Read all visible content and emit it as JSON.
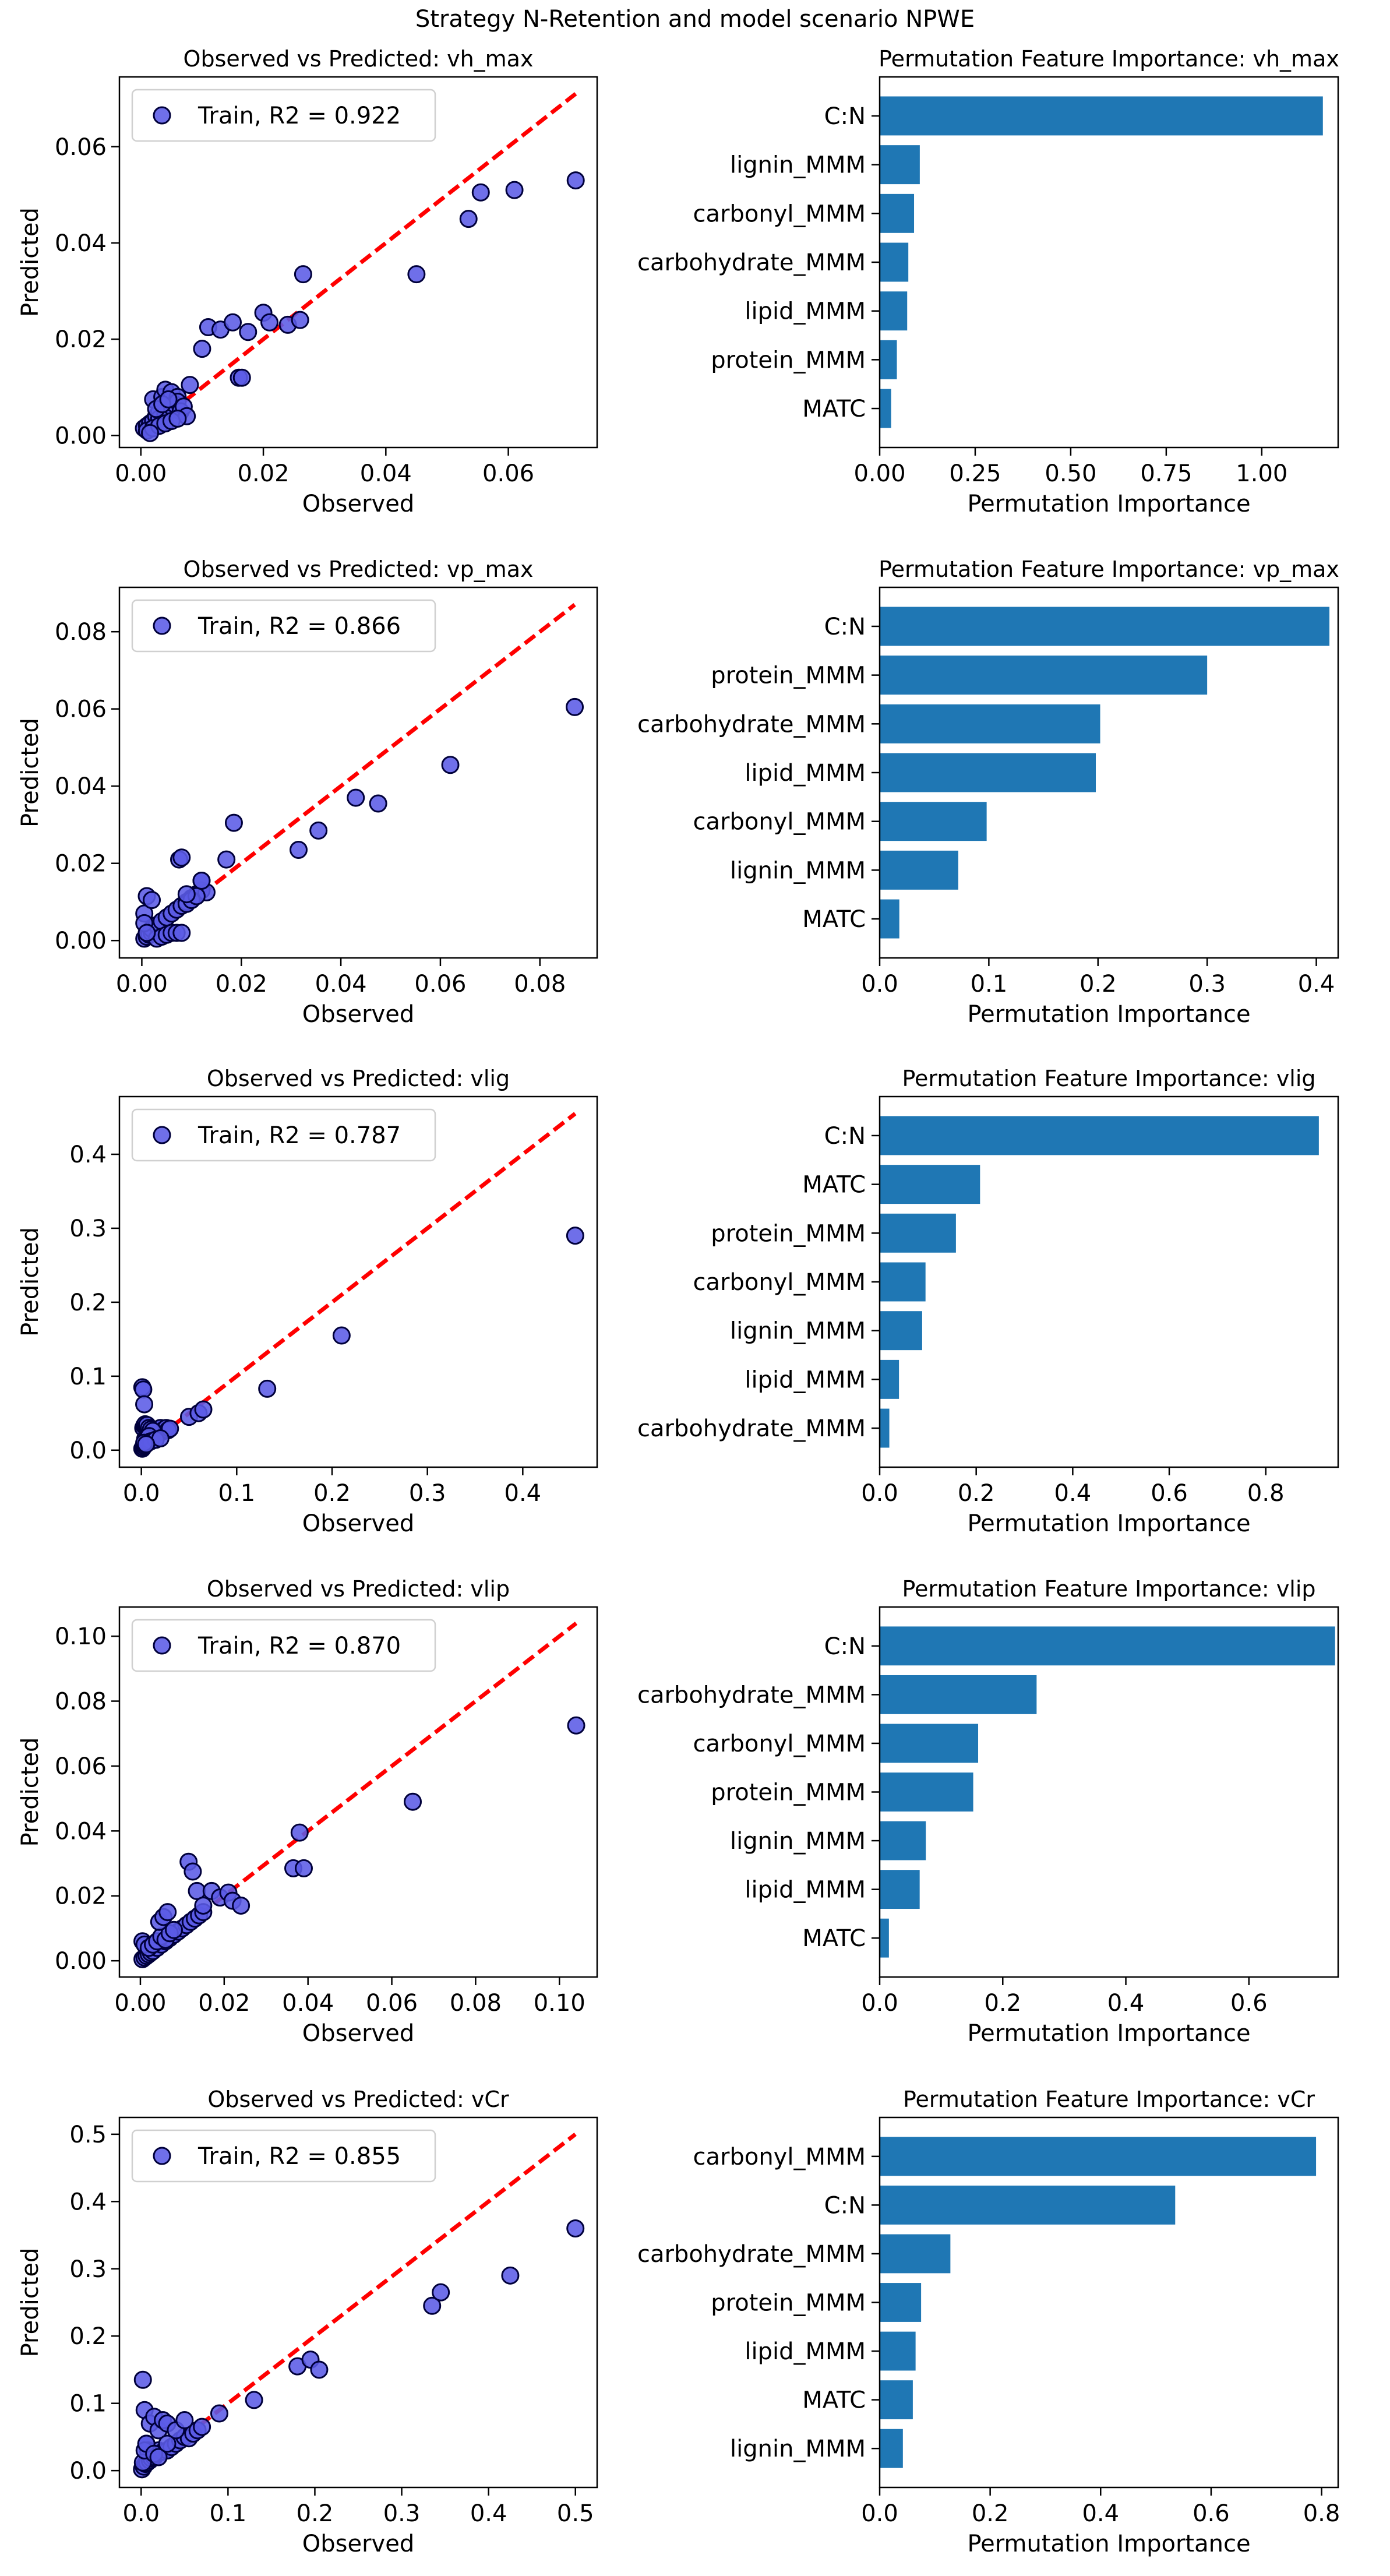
{
  "figure_title": "Strategy N-Retention and model scenario NPWE",
  "colors": {
    "scatter_fill": "#5b5be6",
    "scatter_edge": "#00003a",
    "identity_line": "#ff0000",
    "bar": "#1f77b4"
  },
  "chart_data": [
    {
      "type": "scatter",
      "title": "Observed vs Predicted: vh_max",
      "xlabel": "Observed",
      "ylabel": "Predicted",
      "xlim": [
        -0.0035,
        0.0745
      ],
      "ylim": [
        -0.0025,
        0.0745
      ],
      "xticks": [
        0.0,
        0.02,
        0.04,
        0.06
      ],
      "xtick_labels": [
        "0.00",
        "0.02",
        "0.04",
        "0.06"
      ],
      "yticks": [
        0.0,
        0.02,
        0.04,
        0.06
      ],
      "ytick_labels": [
        "0.00",
        "0.02",
        "0.04",
        "0.06"
      ],
      "legend": "Train, R2 = 0.922",
      "legend_loc": "upper-left",
      "identity_line": [
        0.0,
        0.071
      ],
      "x": [
        0.0005,
        0.001,
        0.0015,
        0.002,
        0.0025,
        0.003,
        0.001,
        0.002,
        0.0035,
        0.004,
        0.005,
        0.006,
        0.003,
        0.004,
        0.0045,
        0.005,
        0.0055,
        0.006,
        0.0065,
        0.007,
        0.0075,
        0.002,
        0.003,
        0.004,
        0.005,
        0.006,
        0.0015,
        0.0025,
        0.0035,
        0.0045,
        0.008,
        0.01,
        0.011,
        0.013,
        0.015,
        0.016,
        0.0165,
        0.0175,
        0.02,
        0.021,
        0.024,
        0.026,
        0.0265,
        0.045,
        0.0535,
        0.0555,
        0.061,
        0.071
      ],
      "y": [
        0.0015,
        0.002,
        0.0025,
        0.003,
        0.004,
        0.005,
        0.001,
        0.0075,
        0.008,
        0.0095,
        0.009,
        0.008,
        0.0035,
        0.0045,
        0.005,
        0.006,
        0.0065,
        0.007,
        0.005,
        0.006,
        0.004,
        0.0015,
        0.002,
        0.0025,
        0.003,
        0.0035,
        0.0005,
        0.0055,
        0.0065,
        0.0075,
        0.0105,
        0.018,
        0.0225,
        0.022,
        0.0235,
        0.012,
        0.012,
        0.0215,
        0.0255,
        0.0235,
        0.023,
        0.024,
        0.0335,
        0.0335,
        0.045,
        0.0505,
        0.051,
        0.053
      ]
    },
    {
      "type": "bar",
      "orientation": "horizontal",
      "title": "Permutation Feature Importance: vh_max",
      "xlabel": "Permutation Importance",
      "xlim": [
        0.0,
        1.2
      ],
      "xticks": [
        0.0,
        0.25,
        0.5,
        0.75,
        1.0
      ],
      "xtick_labels": [
        "0.00",
        "0.25",
        "0.50",
        "0.75",
        "1.00"
      ],
      "categories": [
        "C:N",
        "lignin_MMM",
        "carbonyl_MMM",
        "carbohydrate_MMM",
        "lipid_MMM",
        "protein_MMM",
        "MATC"
      ],
      "values": [
        1.16,
        0.105,
        0.09,
        0.075,
        0.072,
        0.045,
        0.03
      ]
    },
    {
      "type": "scatter",
      "title": "Observed vs Predicted: vp_max",
      "xlabel": "Observed",
      "ylabel": "Predicted",
      "xlim": [
        -0.0045,
        0.0915
      ],
      "ylim": [
        -0.0045,
        0.0915
      ],
      "xticks": [
        0.0,
        0.02,
        0.04,
        0.06,
        0.08
      ],
      "xtick_labels": [
        "0.00",
        "0.02",
        "0.04",
        "0.06",
        "0.08"
      ],
      "yticks": [
        0.0,
        0.02,
        0.04,
        0.06,
        0.08
      ],
      "ytick_labels": [
        "0.00",
        "0.02",
        "0.04",
        "0.06",
        "0.08"
      ],
      "legend": "Train, R2 = 0.866",
      "legend_loc": "upper-left",
      "identity_line": [
        0.0,
        0.087
      ],
      "x": [
        0.0005,
        0.001,
        0.0015,
        0.002,
        0.0025,
        0.003,
        0.0005,
        0.001,
        0.002,
        0.003,
        0.004,
        0.005,
        0.006,
        0.007,
        0.008,
        0.009,
        0.01,
        0.011,
        0.012,
        0.013,
        0.003,
        0.004,
        0.005,
        0.006,
        0.007,
        0.008,
        0.009,
        0.01,
        0.011,
        0.012,
        0.0005,
        0.001,
        0.002,
        0.0075,
        0.008,
        0.009,
        0.012,
        0.017,
        0.0185,
        0.0315,
        0.0355,
        0.043,
        0.0475,
        0.062,
        0.087
      ],
      "y": [
        0.0005,
        0.001,
        0.0015,
        0.002,
        0.0025,
        0.003,
        0.007,
        0.0115,
        0.003,
        0.004,
        0.005,
        0.006,
        0.007,
        0.008,
        0.009,
        0.01,
        0.011,
        0.012,
        0.013,
        0.0125,
        0.0005,
        0.001,
        0.0015,
        0.002,
        0.002,
        0.002,
        0.0095,
        0.0105,
        0.0115,
        0.0155,
        0.0045,
        0.002,
        0.0105,
        0.021,
        0.0215,
        0.012,
        0.0155,
        0.021,
        0.0305,
        0.0235,
        0.0285,
        0.037,
        0.0355,
        0.0455,
        0.0605
      ]
    },
    {
      "type": "bar",
      "orientation": "horizontal",
      "title": "Permutation Feature Importance: vp_max",
      "xlabel": "Permutation Importance",
      "xlim": [
        0.0,
        0.42
      ],
      "xticks": [
        0.0,
        0.1,
        0.2,
        0.3,
        0.4
      ],
      "xtick_labels": [
        "0.0",
        "0.1",
        "0.2",
        "0.3",
        "0.4"
      ],
      "categories": [
        "C:N",
        "protein_MMM",
        "carbohydrate_MMM",
        "lipid_MMM",
        "carbonyl_MMM",
        "lignin_MMM",
        "MATC"
      ],
      "values": [
        0.412,
        0.3,
        0.202,
        0.198,
        0.098,
        0.072,
        0.018
      ]
    },
    {
      "type": "scatter",
      "title": "Observed vs Predicted: vlig",
      "xlabel": "Observed",
      "ylabel": "Predicted",
      "xlim": [
        -0.023,
        0.478
      ],
      "ylim": [
        -0.023,
        0.478
      ],
      "xticks": [
        0.0,
        0.1,
        0.2,
        0.3,
        0.4
      ],
      "xtick_labels": [
        "0.0",
        "0.1",
        "0.2",
        "0.3",
        "0.4"
      ],
      "yticks": [
        0.0,
        0.1,
        0.2,
        0.3,
        0.4
      ],
      "ytick_labels": [
        "0.0",
        "0.1",
        "0.2",
        "0.3",
        "0.4"
      ],
      "legend": "Train, R2 = 0.787",
      "legend_loc": "upper-left",
      "identity_line": [
        0.0,
        0.455
      ],
      "x": [
        0.001,
        0.002,
        0.003,
        0.004,
        0.005,
        0.006,
        0.007,
        0.008,
        0.01,
        0.012,
        0.014,
        0.015,
        0.016,
        0.018,
        0.02,
        0.022,
        0.024,
        0.026,
        0.028,
        0.03,
        0.002,
        0.003,
        0.004,
        0.005,
        0.006,
        0.008,
        0.01,
        0.012,
        0.004,
        0.006,
        0.008,
        0.01,
        0.015,
        0.02,
        0.003,
        0.005,
        0.001,
        0.002,
        0.003,
        0.05,
        0.06,
        0.065,
        0.132,
        0.21,
        0.455
      ],
      "y": [
        0.002,
        0.004,
        0.006,
        0.008,
        0.01,
        0.012,
        0.014,
        0.016,
        0.018,
        0.02,
        0.022,
        0.024,
        0.026,
        0.028,
        0.03,
        0.025,
        0.028,
        0.03,
        0.027,
        0.029,
        0.03,
        0.033,
        0.035,
        0.032,
        0.034,
        0.03,
        0.028,
        0.026,
        0.015,
        0.017,
        0.019,
        0.012,
        0.014,
        0.016,
        0.01,
        0.008,
        0.085,
        0.082,
        0.062,
        0.045,
        0.05,
        0.055,
        0.083,
        0.155,
        0.29
      ]
    },
    {
      "type": "bar",
      "orientation": "horizontal",
      "title": "Permutation Feature Importance: vlig",
      "xlabel": "Permutation Importance",
      "xlim": [
        0.0,
        0.95
      ],
      "xticks": [
        0.0,
        0.2,
        0.4,
        0.6,
        0.8
      ],
      "xtick_labels": [
        "0.0",
        "0.2",
        "0.4",
        "0.6",
        "0.8"
      ],
      "categories": [
        "C:N",
        "MATC",
        "protein_MMM",
        "carbonyl_MMM",
        "lignin_MMM",
        "lipid_MMM",
        "carbohydrate_MMM"
      ],
      "values": [
        0.91,
        0.208,
        0.158,
        0.095,
        0.088,
        0.04,
        0.02
      ]
    },
    {
      "type": "scatter",
      "title": "Observed vs Predicted: vlip",
      "xlabel": "Observed",
      "ylabel": "Predicted",
      "xlim": [
        -0.005,
        0.109
      ],
      "ylim": [
        -0.005,
        0.109
      ],
      "xticks": [
        0.0,
        0.02,
        0.04,
        0.06,
        0.08,
        0.1
      ],
      "xtick_labels": [
        "0.00",
        "0.02",
        "0.04",
        "0.06",
        "0.08",
        "0.10"
      ],
      "yticks": [
        0.0,
        0.02,
        0.04,
        0.06,
        0.08,
        0.1
      ],
      "ytick_labels": [
        "0.00",
        "0.02",
        "0.04",
        "0.06",
        "0.08",
        "0.10"
      ],
      "legend": "Train, R2 = 0.870",
      "legend_loc": "upper-left",
      "identity_line": [
        0.0,
        0.104
      ],
      "x": [
        0.0005,
        0.001,
        0.0015,
        0.002,
        0.0025,
        0.003,
        0.004,
        0.005,
        0.006,
        0.007,
        0.008,
        0.009,
        0.01,
        0.011,
        0.012,
        0.013,
        0.014,
        0.015,
        0.0005,
        0.001,
        0.002,
        0.003,
        0.004,
        0.005,
        0.006,
        0.007,
        0.008,
        0.0045,
        0.0055,
        0.0065,
        0.0115,
        0.0125,
        0.0135,
        0.015,
        0.017,
        0.019,
        0.021,
        0.022,
        0.024,
        0.0365,
        0.038,
        0.039,
        0.065,
        0.104
      ],
      "y": [
        0.0005,
        0.001,
        0.0015,
        0.002,
        0.0025,
        0.003,
        0.004,
        0.005,
        0.006,
        0.007,
        0.008,
        0.009,
        0.01,
        0.011,
        0.012,
        0.013,
        0.014,
        0.015,
        0.006,
        0.005,
        0.004,
        0.005,
        0.006,
        0.0075,
        0.0065,
        0.0085,
        0.0095,
        0.012,
        0.0135,
        0.015,
        0.0305,
        0.0275,
        0.0215,
        0.017,
        0.0215,
        0.0195,
        0.021,
        0.0185,
        0.017,
        0.0285,
        0.0395,
        0.0285,
        0.049,
        0.0725
      ]
    },
    {
      "type": "bar",
      "orientation": "horizontal",
      "title": "Permutation Feature Importance: vlip",
      "xlabel": "Permutation Importance",
      "xlim": [
        0.0,
        0.745
      ],
      "xticks": [
        0.0,
        0.2,
        0.4,
        0.6
      ],
      "xtick_labels": [
        "0.0",
        "0.2",
        "0.4",
        "0.6"
      ],
      "categories": [
        "C:N",
        "carbohydrate_MMM",
        "carbonyl_MMM",
        "protein_MMM",
        "lignin_MMM",
        "lipid_MMM",
        "MATC"
      ],
      "values": [
        0.74,
        0.255,
        0.16,
        0.152,
        0.075,
        0.065,
        0.015
      ]
    },
    {
      "type": "scatter",
      "title": "Observed vs Predicted: vCr",
      "xlabel": "Observed",
      "ylabel": "Predicted",
      "xlim": [
        -0.025,
        0.525
      ],
      "ylim": [
        -0.025,
        0.525
      ],
      "xticks": [
        0.0,
        0.1,
        0.2,
        0.3,
        0.4,
        0.5
      ],
      "xtick_labels": [
        "0.0",
        "0.1",
        "0.2",
        "0.3",
        "0.4",
        "0.5"
      ],
      "yticks": [
        0.0,
        0.1,
        0.2,
        0.3,
        0.4,
        0.5
      ],
      "ytick_labels": [
        "0.0",
        "0.1",
        "0.2",
        "0.3",
        "0.4",
        "0.5"
      ],
      "legend": "Train, R2 = 0.855",
      "legend_loc": "upper-left",
      "identity_line": [
        0.0,
        0.5
      ],
      "x": [
        0.001,
        0.003,
        0.005,
        0.007,
        0.01,
        0.012,
        0.015,
        0.018,
        0.02,
        0.025,
        0.03,
        0.035,
        0.04,
        0.045,
        0.05,
        0.055,
        0.06,
        0.065,
        0.002,
        0.004,
        0.006,
        0.008,
        0.01,
        0.015,
        0.02,
        0.025,
        0.03,
        0.04,
        0.05,
        0.002,
        0.004,
        0.006,
        0.015,
        0.02,
        0.03,
        0.07,
        0.09,
        0.13,
        0.18,
        0.195,
        0.205,
        0.335,
        0.345,
        0.425,
        0.5
      ],
      "y": [
        0.002,
        0.006,
        0.01,
        0.012,
        0.015,
        0.018,
        0.02,
        0.025,
        0.03,
        0.028,
        0.03,
        0.035,
        0.04,
        0.045,
        0.05,
        0.048,
        0.055,
        0.06,
        0.135,
        0.09,
        0.04,
        0.03,
        0.07,
        0.08,
        0.06,
        0.075,
        0.07,
        0.06,
        0.075,
        0.012,
        0.03,
        0.04,
        0.025,
        0.02,
        0.04,
        0.065,
        0.085,
        0.105,
        0.155,
        0.165,
        0.15,
        0.245,
        0.265,
        0.29,
        0.36
      ]
    },
    {
      "type": "bar",
      "orientation": "horizontal",
      "title": "Permutation Feature Importance: vCr",
      "xlabel": "Permutation Importance",
      "xlim": [
        0.0,
        0.83
      ],
      "xticks": [
        0.0,
        0.2,
        0.4,
        0.6,
        0.8
      ],
      "xtick_labels": [
        "0.0",
        "0.2",
        "0.4",
        "0.6",
        "0.8"
      ],
      "categories": [
        "carbonyl_MMM",
        "C:N",
        "carbohydrate_MMM",
        "protein_MMM",
        "lipid_MMM",
        "MATC",
        "lignin_MMM"
      ],
      "values": [
        0.79,
        0.535,
        0.128,
        0.075,
        0.065,
        0.06,
        0.042
      ]
    }
  ]
}
